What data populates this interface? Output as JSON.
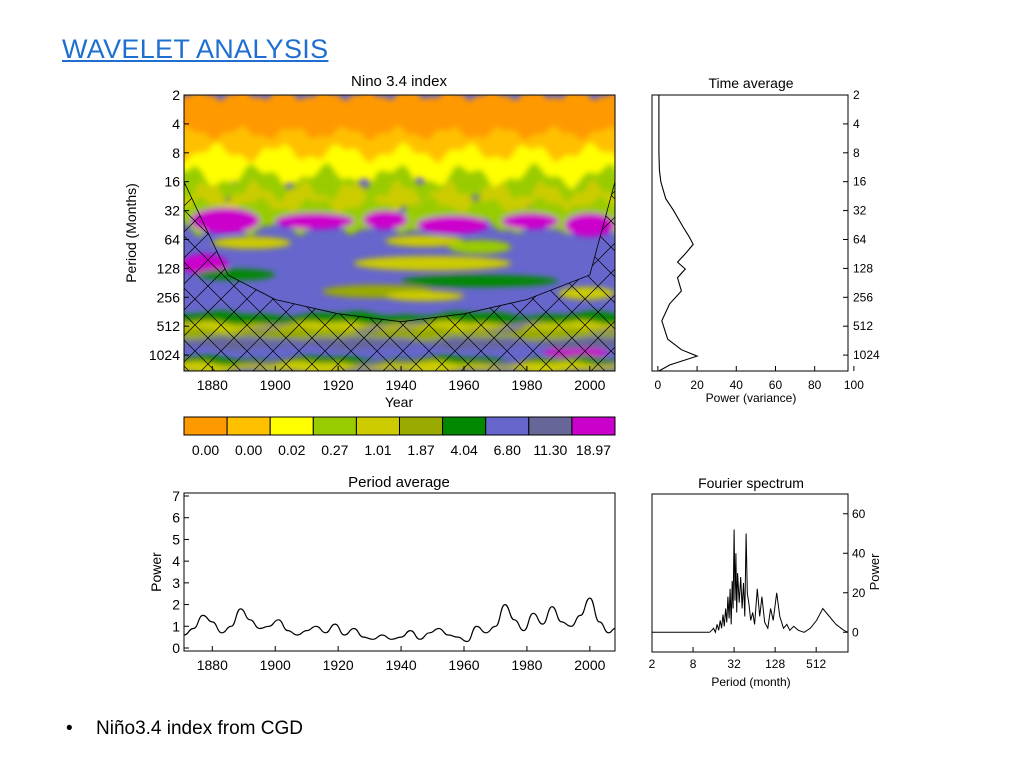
{
  "slide": {
    "title": "WAVELET ANALYSIS",
    "bullet": "Niño3.4 index from CGD",
    "bullet_marker": "•"
  },
  "colors": {
    "levels": [
      "#ff9900",
      "#ffc000",
      "#ffff00",
      "#99cc00",
      "#cccc00",
      "#99aa00",
      "#008800",
      "#6666cc",
      "#666699",
      "#cc00cc"
    ],
    "line": "#000000",
    "title": "#1f6fd1"
  },
  "chart_data": [
    {
      "id": "wavelet",
      "type": "heatmap",
      "title": "Nino 3.4 index",
      "xlabel": "Year",
      "ylabel": "Period (Months)",
      "xlim": [
        1871,
        2008
      ],
      "ylim": [
        2,
        1500
      ],
      "y_scale": "log2",
      "y_reversed": true,
      "x_ticks": [
        "1880",
        "1900",
        "1920",
        "1940",
        "1960",
        "1980",
        "2000"
      ],
      "y_ticks": [
        "2",
        "4",
        "8",
        "16",
        "32",
        "64",
        "128",
        "256",
        "512",
        "1024"
      ],
      "colorbar_labels": [
        "0.00",
        "0.00",
        "0.02",
        "0.27",
        "1.01",
        "1.87",
        "4.04",
        "6.80",
        "11.30",
        "18.97"
      ],
      "cone_of_influence": {
        "x": [
          1871,
          1885,
          1900,
          1920,
          1940,
          1960,
          1980,
          2000,
          2008
        ],
        "period": [
          16,
          150,
          270,
          380,
          460,
          380,
          270,
          150,
          16
        ]
      }
    },
    {
      "id": "time-average",
      "type": "line",
      "title": "Time average",
      "xlabel": "Power (variance)",
      "xlim": [
        0,
        100
      ],
      "x_ticks": [
        "0",
        "20",
        "40",
        "60",
        "80",
        "100"
      ],
      "y_ticks": [
        "2",
        "4",
        "8",
        "16",
        "32",
        "64",
        "128",
        "256",
        "512",
        "1024"
      ],
      "y_scale": "log2",
      "y_reversed": true,
      "series": [
        {
          "power": [
            0.5,
            0.5,
            0.5,
            0.8,
            1.5,
            4,
            8,
            13,
            16,
            18,
            14,
            10,
            14,
            10,
            12,
            6,
            2,
            5,
            12,
            20,
            6,
            0.5
          ],
          "period": [
            2,
            4,
            8,
            12,
            16,
            24,
            32,
            48,
            60,
            72,
            90,
            110,
            130,
            160,
            220,
            300,
            450,
            700,
            900,
            1050,
            1300,
            1500
          ]
        }
      ]
    },
    {
      "id": "period-average",
      "type": "line",
      "title": "Period average",
      "ylabel": "Power",
      "xlim": [
        1871,
        2008
      ],
      "ylim": [
        0,
        7
      ],
      "x_ticks": [
        "1880",
        "1900",
        "1920",
        "1940",
        "1960",
        "1980",
        "2000"
      ],
      "y_ticks": [
        "0",
        "1",
        "2",
        "3",
        "4",
        "5",
        "6",
        "7"
      ],
      "series": [
        {
          "x": [
            1871,
            1874,
            1877,
            1880,
            1883,
            1886,
            1889,
            1892,
            1895,
            1898,
            1901,
            1904,
            1907,
            1910,
            1913,
            1916,
            1919,
            1922,
            1925,
            1928,
            1931,
            1934,
            1937,
            1940,
            1943,
            1946,
            1949,
            1952,
            1955,
            1958,
            1961,
            1964,
            1967,
            1970,
            1973,
            1976,
            1979,
            1982,
            1985,
            1988,
            1991,
            1994,
            1997,
            2000,
            2003,
            2006,
            2008
          ],
          "y": [
            0.6,
            0.9,
            1.5,
            1.2,
            0.7,
            1.0,
            1.8,
            1.3,
            0.9,
            1.0,
            1.3,
            0.8,
            0.6,
            0.8,
            1.0,
            0.7,
            1.1,
            0.6,
            0.9,
            0.5,
            0.4,
            0.6,
            0.4,
            0.5,
            0.8,
            0.4,
            0.7,
            0.9,
            0.6,
            0.5,
            0.3,
            1.0,
            0.7,
            1.0,
            2.0,
            1.3,
            0.8,
            1.6,
            1.1,
            1.9,
            1.2,
            1.0,
            1.5,
            2.3,
            1.2,
            0.7,
            0.9
          ]
        }
      ]
    },
    {
      "id": "fourier-spectrum",
      "type": "line",
      "title": "Fourier spectrum",
      "xlabel": "Period (month)",
      "ylabel": "Power",
      "x_scale": "log2",
      "xlim": [
        2,
        1500
      ],
      "ylim": [
        -10,
        70
      ],
      "x_ticks": [
        "2",
        "8",
        "32",
        "128",
        "512"
      ],
      "y_ticks": [
        "0",
        "20",
        "40",
        "60"
      ],
      "series": [
        {
          "x": [
            2,
            14,
            15,
            16,
            17,
            18,
            19,
            20,
            21,
            22,
            23,
            24,
            25,
            26,
            27,
            28,
            29,
            30,
            31,
            32,
            33,
            34,
            35,
            36,
            38,
            40,
            42,
            44,
            46,
            48,
            50,
            53,
            56,
            60,
            64,
            70,
            76,
            82,
            90,
            100,
            110,
            120,
            135,
            150,
            170,
            190,
            210,
            240,
            280,
            340,
            420,
            520,
            640,
            800,
            1000,
            1300,
            1500
          ],
          "y": [
            0,
            0,
            1,
            2,
            0,
            4,
            1,
            6,
            2,
            9,
            3,
            12,
            5,
            18,
            7,
            22,
            4,
            26,
            12,
            52,
            16,
            40,
            10,
            30,
            15,
            28,
            12,
            25,
            8,
            50,
            20,
            14,
            6,
            10,
            4,
            22,
            8,
            18,
            5,
            2,
            12,
            6,
            20,
            8,
            2,
            4,
            1,
            3,
            1,
            0,
            2,
            6,
            12,
            8,
            4,
            1,
            0
          ]
        }
      ]
    }
  ]
}
